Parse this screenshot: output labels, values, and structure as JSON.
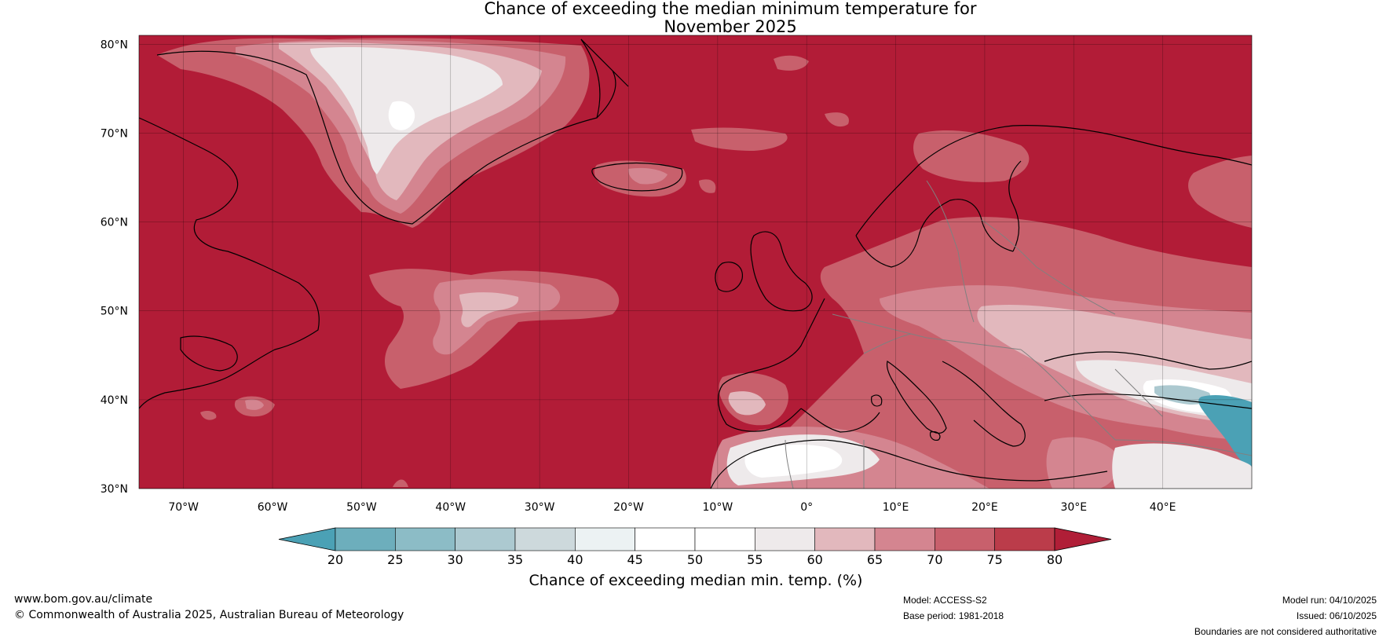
{
  "title": {
    "line1": "Chance of exceeding the median minimum temperature for",
    "line2": "November 2025"
  },
  "axes": {
    "lat_labels": [
      "80°N",
      "70°N",
      "60°N",
      "50°N",
      "40°N",
      "30°N"
    ],
    "lon_labels": [
      "70°W",
      "60°W",
      "50°W",
      "40°W",
      "30°W",
      "20°W",
      "10°W",
      "0°",
      "10°E",
      "20°E",
      "30°E",
      "40°E"
    ]
  },
  "colorbar": {
    "ticks": [
      "20",
      "25",
      "30",
      "35",
      "40",
      "45",
      "50",
      "55",
      "60",
      "65",
      "70",
      "75",
      "80"
    ],
    "colors": [
      "#4ba1b5",
      "#6daebc",
      "#8cbcc6",
      "#acc9d0",
      "#cdd9dc",
      "#ecf2f3",
      "#ffffff",
      "#ffffff",
      "#eeeaeb",
      "#e2b8bd",
      "#d48590",
      "#c8606c",
      "#bb3c4a",
      "#b01e37"
    ],
    "label": "Chance of exceeding median min. temp. (%)"
  },
  "map": {
    "base_color": "#b21c37",
    "shade_light": "#c8606c",
    "shade_mid": "#d48590",
    "shade_pale": "#e2b8bd",
    "shade_white": "#eeeaeb",
    "teal": "#4ba1b5"
  },
  "footer": {
    "website": "www.bom.gov.au/climate",
    "copyright": "© Commonwealth of Australia 2025, Australian Bureau of Meteorology",
    "model": "Model: ACCESS-S2",
    "base_period": "Base period: 1981-2018",
    "model_run": "Model run: 04/10/2025",
    "issued": "Issued: 06/10/2025",
    "disclaimer": "Boundaries are not considered authoritative"
  }
}
